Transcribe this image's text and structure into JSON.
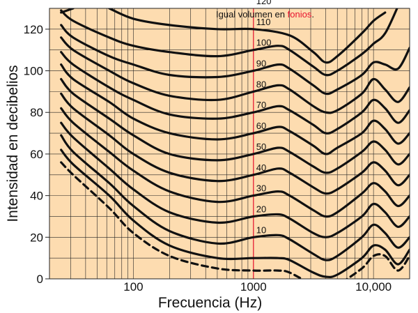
{
  "chart_data": {
    "type": "line",
    "title": {
      "prefix": "Igual volumen en ",
      "highlight": "fonios",
      "suffix": "."
    },
    "xlabel": "Frecuencia (Hz)",
    "ylabel": "Intensidad en decibelios",
    "x_scale": "log",
    "xlim": [
      20,
      20000
    ],
    "ylim": [
      0,
      130
    ],
    "x_ticks": [
      {
        "value": 100,
        "label": "100",
        "highlight": false
      },
      {
        "value": 1000,
        "label": "1000",
        "highlight": true
      },
      {
        "value": 10000,
        "label": "10,000",
        "highlight": false
      }
    ],
    "y_ticks": [
      0,
      20,
      40,
      60,
      80,
      100,
      120
    ],
    "grid": true,
    "background_color": "#fddcb0",
    "line_color": "#111111",
    "highlight_color": "#e8112d",
    "series": [
      {
        "name": "120",
        "style": "solid",
        "points": [
          [
            25,
            128
          ],
          [
            31.5,
            130
          ]
        ]
      },
      {
        "name": "110",
        "style": "solid",
        "points": [
          [
            63,
            130
          ],
          [
            100,
            125
          ],
          [
            200,
            122
          ],
          [
            500,
            120
          ],
          [
            1000,
            120
          ],
          [
            2000,
            117
          ],
          [
            3150,
            109
          ],
          [
            4000,
            104
          ],
          [
            5000,
            107
          ],
          [
            8000,
            118
          ],
          [
            10000,
            124
          ],
          [
            12500,
            128
          ]
        ]
      },
      {
        "name": "100",
        "style": "solid",
        "points": [
          [
            25,
            129
          ],
          [
            31.5,
            124
          ],
          [
            63,
            116
          ],
          [
            100,
            112
          ],
          [
            200,
            109
          ],
          [
            500,
            107
          ],
          [
            1000,
            110
          ],
          [
            1600,
            112
          ],
          [
            2000,
            110
          ],
          [
            3150,
            102
          ],
          [
            4000,
            98
          ],
          [
            5000,
            100
          ],
          [
            8000,
            108
          ],
          [
            10000,
            113
          ],
          [
            12500,
            118
          ],
          [
            16000,
            131
          ]
        ]
      },
      {
        "name": "90",
        "style": "solid",
        "points": [
          [
            25,
            122
          ],
          [
            31.5,
            116
          ],
          [
            63,
            107
          ],
          [
            100,
            103
          ],
          [
            200,
            98
          ],
          [
            500,
            97
          ],
          [
            1000,
            100
          ],
          [
            1600,
            103
          ],
          [
            2000,
            101
          ],
          [
            3150,
            93
          ],
          [
            4000,
            89
          ],
          [
            5000,
            91
          ],
          [
            8000,
            98
          ],
          [
            10000,
            104
          ],
          [
            12500,
            103
          ],
          [
            16000,
            101
          ],
          [
            20000,
            111
          ]
        ]
      },
      {
        "name": "80",
        "style": "solid",
        "points": [
          [
            25,
            116
          ],
          [
            31.5,
            110
          ],
          [
            63,
            100
          ],
          [
            100,
            94
          ],
          [
            200,
            88
          ],
          [
            500,
            86
          ],
          [
            1000,
            90
          ],
          [
            1600,
            93
          ],
          [
            2000,
            91
          ],
          [
            3150,
            83
          ],
          [
            4000,
            80
          ],
          [
            5000,
            81
          ],
          [
            8000,
            89
          ],
          [
            10000,
            96
          ],
          [
            12500,
            91
          ],
          [
            16000,
            85
          ],
          [
            20000,
            92
          ]
        ]
      },
      {
        "name": "70",
        "style": "solid",
        "points": [
          [
            25,
            109
          ],
          [
            31.5,
            103
          ],
          [
            63,
            92
          ],
          [
            100,
            86
          ],
          [
            200,
            79
          ],
          [
            500,
            77
          ],
          [
            1000,
            80
          ],
          [
            1600,
            83
          ],
          [
            2000,
            81
          ],
          [
            3150,
            74
          ],
          [
            4000,
            70
          ],
          [
            5000,
            72
          ],
          [
            8000,
            80
          ],
          [
            10000,
            86
          ],
          [
            12500,
            82
          ],
          [
            16000,
            75
          ],
          [
            20000,
            81
          ]
        ]
      },
      {
        "name": "60",
        "style": "solid",
        "points": [
          [
            25,
            103
          ],
          [
            31.5,
            96
          ],
          [
            63,
            85
          ],
          [
            100,
            77
          ],
          [
            200,
            70
          ],
          [
            500,
            67
          ],
          [
            1000,
            70
          ],
          [
            1600,
            73
          ],
          [
            2000,
            71
          ],
          [
            3150,
            64
          ],
          [
            4000,
            60
          ],
          [
            5000,
            63
          ],
          [
            8000,
            70
          ],
          [
            10000,
            76
          ],
          [
            12500,
            72
          ],
          [
            16000,
            65
          ],
          [
            20000,
            70
          ]
        ]
      },
      {
        "name": "50",
        "style": "solid",
        "points": [
          [
            25,
            96
          ],
          [
            31.5,
            89
          ],
          [
            63,
            77
          ],
          [
            100,
            69
          ],
          [
            200,
            60
          ],
          [
            500,
            57
          ],
          [
            1000,
            60
          ],
          [
            1600,
            63
          ],
          [
            2000,
            61
          ],
          [
            3150,
            54
          ],
          [
            4000,
            51
          ],
          [
            5000,
            53
          ],
          [
            8000,
            61
          ],
          [
            10000,
            66
          ],
          [
            12500,
            62
          ],
          [
            16000,
            55
          ],
          [
            20000,
            60
          ]
        ]
      },
      {
        "name": "40",
        "style": "solid",
        "points": [
          [
            25,
            89
          ],
          [
            31.5,
            82
          ],
          [
            63,
            69
          ],
          [
            100,
            60
          ],
          [
            200,
            51
          ],
          [
            500,
            47
          ],
          [
            1000,
            50
          ],
          [
            1600,
            53
          ],
          [
            2000,
            51
          ],
          [
            3150,
            44
          ],
          [
            4000,
            41
          ],
          [
            5000,
            43
          ],
          [
            8000,
            51
          ],
          [
            10000,
            56
          ],
          [
            12500,
            52
          ],
          [
            16000,
            45
          ],
          [
            20000,
            50
          ]
        ]
      },
      {
        "name": "30",
        "style": "solid",
        "points": [
          [
            25,
            82
          ],
          [
            31.5,
            75
          ],
          [
            63,
            61
          ],
          [
            100,
            52
          ],
          [
            200,
            42
          ],
          [
            500,
            37
          ],
          [
            1000,
            40
          ],
          [
            1600,
            42
          ],
          [
            2000,
            40
          ],
          [
            3150,
            33
          ],
          [
            4000,
            30
          ],
          [
            5000,
            32
          ],
          [
            8000,
            41
          ],
          [
            10000,
            46
          ],
          [
            12500,
            42
          ],
          [
            16000,
            35
          ],
          [
            20000,
            40
          ]
        ]
      },
      {
        "name": "20",
        "style": "solid",
        "points": [
          [
            25,
            75
          ],
          [
            31.5,
            68
          ],
          [
            63,
            53
          ],
          [
            100,
            43
          ],
          [
            200,
            32
          ],
          [
            500,
            27
          ],
          [
            1000,
            30
          ],
          [
            1600,
            31
          ],
          [
            2000,
            29
          ],
          [
            3150,
            22
          ],
          [
            4000,
            20
          ],
          [
            5000,
            22
          ],
          [
            8000,
            30
          ],
          [
            10000,
            36
          ],
          [
            12500,
            32
          ],
          [
            16000,
            25
          ],
          [
            20000,
            30
          ]
        ]
      },
      {
        "name": "10",
        "style": "solid",
        "points": [
          [
            25,
            69
          ],
          [
            31.5,
            61
          ],
          [
            63,
            46
          ],
          [
            100,
            35
          ],
          [
            200,
            23
          ],
          [
            500,
            17
          ],
          [
            1000,
            20
          ],
          [
            1600,
            21
          ],
          [
            2000,
            19
          ],
          [
            3150,
            12
          ],
          [
            4000,
            9
          ],
          [
            5000,
            11
          ],
          [
            8000,
            20
          ],
          [
            10000,
            26
          ],
          [
            12500,
            22
          ],
          [
            16000,
            15
          ],
          [
            20000,
            20
          ]
        ]
      },
      {
        "name": "",
        "style": "solid",
        "points": [
          [
            25,
            62
          ],
          [
            31.5,
            55
          ],
          [
            63,
            40
          ],
          [
            100,
            28
          ],
          [
            200,
            16
          ],
          [
            500,
            10
          ],
          [
            1000,
            10
          ],
          [
            1600,
            10
          ],
          [
            2000,
            9
          ],
          [
            3150,
            3
          ],
          [
            4000,
            1
          ],
          [
            5000,
            2
          ],
          [
            8000,
            10
          ],
          [
            10000,
            16
          ],
          [
            12500,
            14
          ],
          [
            16000,
            7
          ],
          [
            20000,
            14
          ]
        ]
      },
      {
        "name": "",
        "style": "dashed",
        "points": [
          [
            25,
            56
          ],
          [
            31.5,
            50
          ],
          [
            63,
            34
          ],
          [
            100,
            22
          ],
          [
            200,
            11
          ],
          [
            500,
            5
          ],
          [
            1000,
            4
          ],
          [
            1600,
            4
          ],
          [
            2000,
            3
          ],
          [
            3150,
            -3
          ],
          [
            4000,
            -5
          ],
          [
            5000,
            -3
          ],
          [
            8000,
            5
          ],
          [
            10000,
            11
          ],
          [
            12500,
            11
          ],
          [
            16000,
            4
          ],
          [
            20000,
            11
          ]
        ]
      }
    ]
  }
}
